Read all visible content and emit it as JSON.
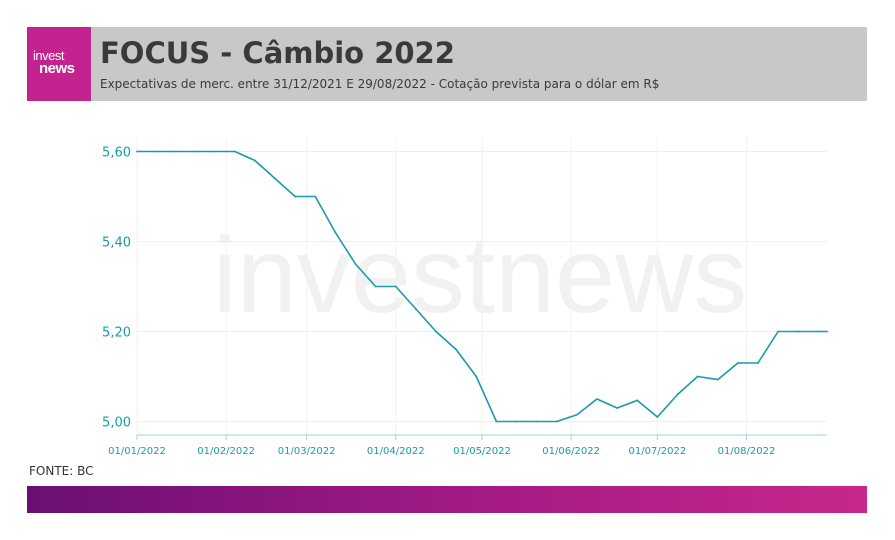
{
  "header": {
    "logo_line1": "invest",
    "logo_line2": "news",
    "title": "FOCUS - Câmbio 2022",
    "subtitle": "Expectativas de merc. entre 31/12/2021 E 29/08/2022 - Cotação prevista para o dólar em R$"
  },
  "watermark": "investnews",
  "source": "FONTE: BC",
  "colors": {
    "line": "#1a9aaa",
    "tick_y": "#1a9aaa",
    "tick_x": "#1a9aaa",
    "header_bg": "#c8c8c8",
    "logo_bg": "#c4228e",
    "gradient_start": "#6b0f74",
    "gradient_end": "#c8278c"
  },
  "chart_data": {
    "type": "line",
    "title": "",
    "xlabel": "",
    "ylabel": "",
    "ylim": [
      4.97,
      5.63
    ],
    "yticks": [
      5.0,
      5.2,
      5.4,
      5.6
    ],
    "ytick_labels": [
      "5,00",
      "5,20",
      "5,40",
      "5,60"
    ],
    "xlim": [
      "2022-01-01",
      "2022-08-29"
    ],
    "xticks": [
      "2022-01-01",
      "2022-02-01",
      "2022-03-01",
      "2022-04-01",
      "2022-05-01",
      "2022-06-01",
      "2022-07-01",
      "2022-08-01"
    ],
    "xtick_labels": [
      "01/01/2022",
      "01/02/2022",
      "01/03/2022",
      "01/04/2022",
      "01/05/2022",
      "01/06/2022",
      "01/07/2022",
      "01/08/2022"
    ],
    "grid": true,
    "legend": false,
    "series": [
      {
        "points": [
          [
            "2022-01-01",
            5.6
          ],
          [
            "2022-01-07",
            5.6
          ],
          [
            "2022-01-14",
            5.6
          ],
          [
            "2022-01-21",
            5.6
          ],
          [
            "2022-01-28",
            5.6
          ],
          [
            "2022-02-04",
            5.6
          ],
          [
            "2022-02-11",
            5.58
          ],
          [
            "2022-02-18",
            5.54
          ],
          [
            "2022-02-25",
            5.5
          ],
          [
            "2022-03-04",
            5.5
          ],
          [
            "2022-03-11",
            5.42
          ],
          [
            "2022-03-18",
            5.35
          ],
          [
            "2022-03-25",
            5.3
          ],
          [
            "2022-04-01",
            5.3
          ],
          [
            "2022-04-08",
            5.25
          ],
          [
            "2022-04-15",
            5.2
          ],
          [
            "2022-04-22",
            5.16
          ],
          [
            "2022-04-29",
            5.1
          ],
          [
            "2022-05-06",
            5.0
          ],
          [
            "2022-05-13",
            5.0
          ],
          [
            "2022-05-20",
            5.0
          ],
          [
            "2022-05-27",
            5.0
          ],
          [
            "2022-06-03",
            5.015
          ],
          [
            "2022-06-10",
            5.05
          ],
          [
            "2022-06-17",
            5.03
          ],
          [
            "2022-06-24",
            5.047
          ],
          [
            "2022-07-01",
            5.01
          ],
          [
            "2022-07-08",
            5.06
          ],
          [
            "2022-07-15",
            5.1
          ],
          [
            "2022-07-22",
            5.093
          ],
          [
            "2022-07-29",
            5.13
          ],
          [
            "2022-08-05",
            5.13
          ],
          [
            "2022-08-12",
            5.2
          ],
          [
            "2022-08-19",
            5.2
          ],
          [
            "2022-08-26",
            5.2
          ],
          [
            "2022-08-29",
            5.2
          ]
        ]
      }
    ]
  }
}
